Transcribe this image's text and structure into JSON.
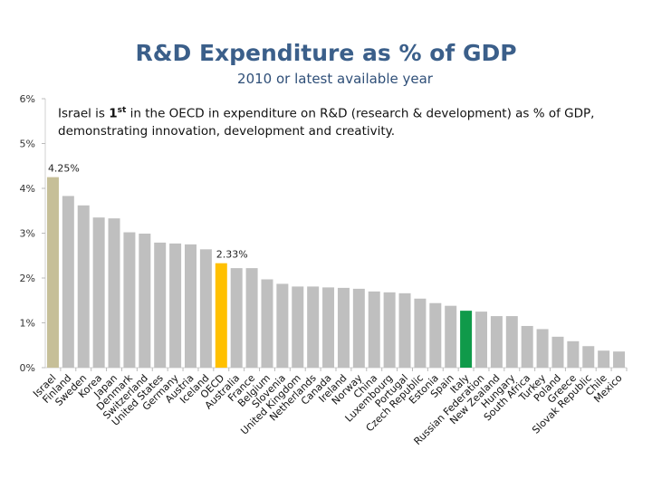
{
  "chart_data": {
    "type": "bar",
    "title": "R&D Expenditure as % of GDP",
    "subtitle": "2010 or latest available year",
    "annotation": {
      "pre": "Israel is ",
      "rank": "1",
      "suffix": "st",
      "post": " in the OECD in expenditure on R&D (research & development) as % of GDP, demonstrating innovation, development and creativity."
    },
    "categories": [
      "Israel",
      "Finland",
      "Sweden",
      "Korea",
      "Japan",
      "Denmark",
      "Switzerland",
      "United States",
      "Germany",
      "Austria",
      "Iceland",
      "OECD",
      "Australia",
      "France",
      "Belgium",
      "Slovenia",
      "United Kingdom",
      "Netherlands",
      "Canada",
      "Ireland",
      "Norway",
      "China",
      "Luxembourg",
      "Portugal",
      "Czech Republic",
      "Estonia",
      "Spain",
      "Italy",
      "Russian Federation",
      "New Zealand",
      "Hungary",
      "South Africa",
      "Turkey",
      "Poland",
      "Greece",
      "Slovak Republic",
      "Chile",
      "Mexico"
    ],
    "values": [
      4.25,
      3.83,
      3.62,
      3.35,
      3.33,
      3.02,
      2.99,
      2.79,
      2.77,
      2.75,
      2.64,
      2.33,
      2.22,
      2.22,
      1.97,
      1.87,
      1.81,
      1.81,
      1.79,
      1.78,
      1.76,
      1.7,
      1.68,
      1.66,
      1.54,
      1.44,
      1.38,
      1.27,
      1.25,
      1.15,
      1.15,
      0.93,
      0.86,
      0.69,
      0.59,
      0.48,
      0.38,
      0.36
    ],
    "data_labels": {
      "Israel": "4.25%",
      "OECD": "2.33%"
    },
    "yticks": [
      "0%",
      "1%",
      "2%",
      "3%",
      "4%",
      "5%",
      "6%"
    ],
    "ylim": [
      0,
      6
    ],
    "grid": false,
    "colors": {
      "default": "#bfbfbf",
      "Israel": "#c6bf98",
      "OECD": "#ffc000",
      "Italy": "#109a4a",
      "title": "#3b5f8a"
    }
  }
}
